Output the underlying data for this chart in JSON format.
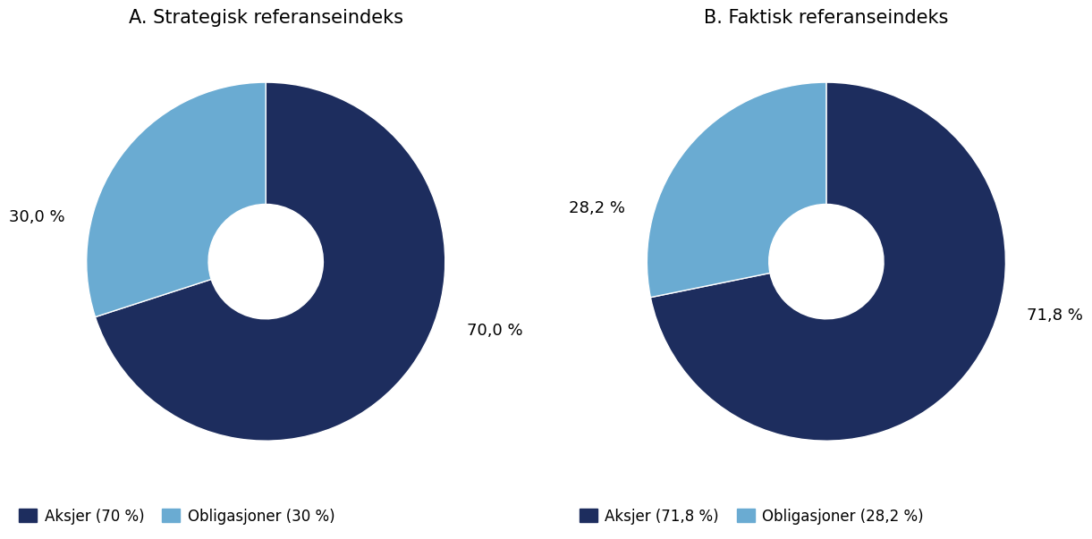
{
  "chart_A": {
    "title": "A. Strategisk referanseindeks",
    "values": [
      70.0,
      30.0
    ],
    "labels": [
      "70,0 %",
      "30,0 %"
    ],
    "colors": [
      "#1d2d5e",
      "#6aabd2"
    ],
    "legend_labels": [
      "Aksjer (70 %)",
      "Obligasjoner (30 %)"
    ]
  },
  "chart_B": {
    "title": "B. Faktisk referanseindeks",
    "values": [
      71.8,
      28.2
    ],
    "labels": [
      "71,8 %",
      "28,2 %"
    ],
    "colors": [
      "#1d2d5e",
      "#6aabd2"
    ],
    "legend_labels": [
      "Aksjer (71,8 %)",
      "Obligasjoner (28,2 %)"
    ]
  },
  "background_color": "#ffffff",
  "title_fontsize": 15,
  "label_fontsize": 13,
  "legend_fontsize": 12,
  "donut_width": 0.68,
  "startangle_A": 90,
  "startangle_B": 90
}
